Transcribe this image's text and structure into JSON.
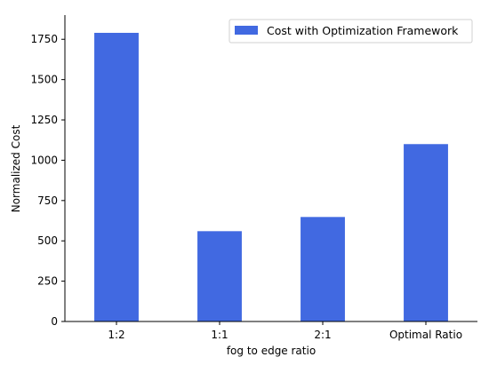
{
  "chart_data": {
    "type": "bar",
    "categories": [
      "1:2",
      "1:1",
      "2:1",
      "Optimal Ratio"
    ],
    "series": [
      {
        "name": "Cost with Optimization Framework",
        "values": [
          1790,
          560,
          648,
          1100
        ]
      }
    ],
    "xlabel": "fog to edge ratio",
    "ylabel": "Normalized Cost",
    "ylim": [
      0,
      1900
    ],
    "yticks": [
      0,
      250,
      500,
      750,
      1000,
      1250,
      1500,
      1750
    ],
    "grid": false,
    "legend_position": "top-right",
    "bar_color": "#4169e1"
  }
}
